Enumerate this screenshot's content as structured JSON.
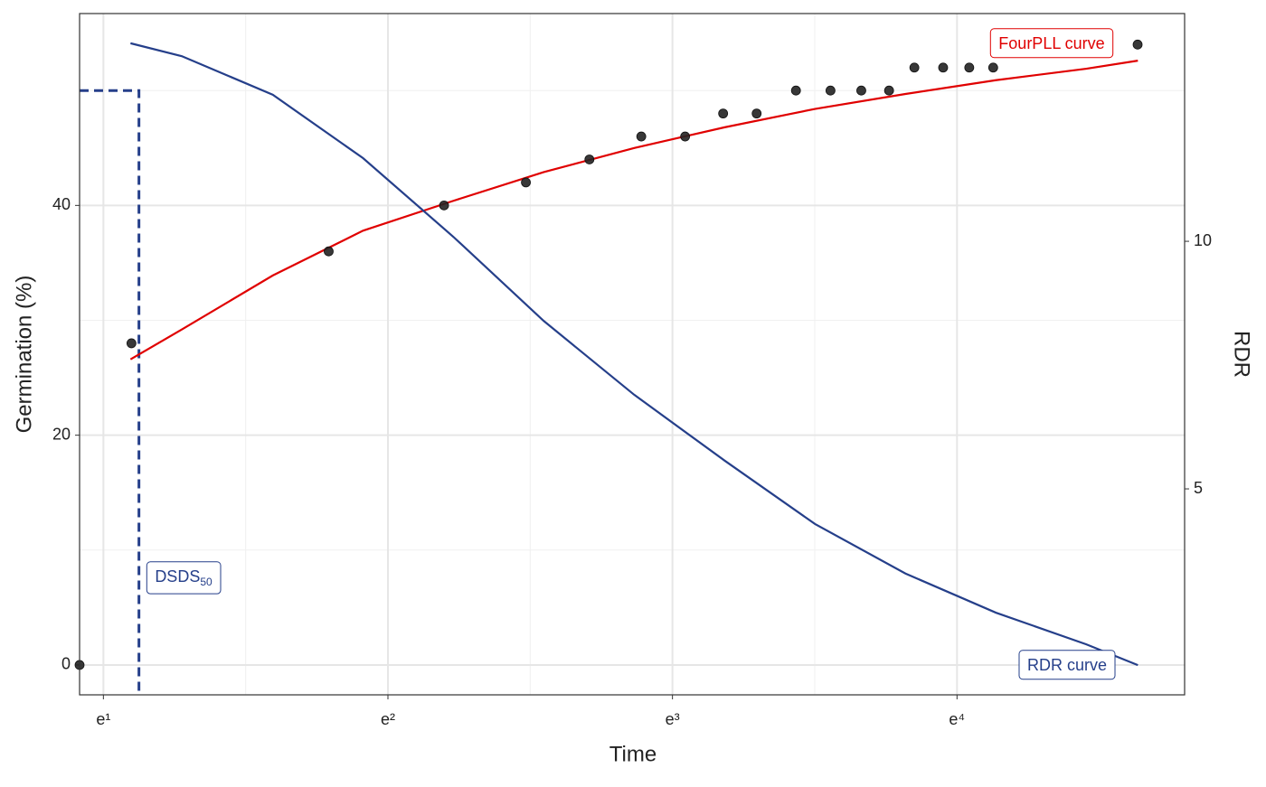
{
  "chart_data": {
    "type": "scatter",
    "x_label": "Time",
    "y_label": "Germination (%)",
    "y2_label": "RDR",
    "x_scale": "log",
    "xlim": [
      2.5,
      121.5
    ],
    "xticks": [
      {
        "value": 2.718282,
        "label": "e¹"
      },
      {
        "value": 7.389056,
        "label": "e²"
      },
      {
        "value": 20.085537,
        "label": "e³"
      },
      {
        "value": 54.59815,
        "label": "e⁴"
      }
    ],
    "xminor": [
      4.481689,
      12.182494,
      33.11545
    ],
    "ylim": [
      -2.6,
      56.7
    ],
    "yticks": [
      0,
      20,
      40
    ],
    "yminor": [
      10,
      30,
      50
    ],
    "y2lim": [
      0.84,
      14.6
    ],
    "y2ticks": [
      5,
      10
    ],
    "grid": true,
    "points": {
      "color": "#222222",
      "x": [
        2.5,
        3,
        6,
        9,
        12,
        15,
        18,
        21,
        24,
        27,
        31,
        35,
        39,
        43,
        47,
        52,
        57,
        62,
        103
      ],
      "values": [
        0,
        28,
        36,
        40,
        42,
        44,
        46,
        46,
        48,
        48,
        50,
        50,
        50,
        50,
        52,
        52,
        52,
        52,
        54
      ]
    },
    "curves": [
      {
        "name": "FourPLL curve",
        "color": "#e00000",
        "axis": "y",
        "x": [
          2.99,
          3.58,
          4.93,
          6.77,
          9.3,
          12.78,
          17.56,
          24.13,
          33.15,
          45.55,
          62.59,
          86.01,
          103.1
        ],
        "values": [
          26.6,
          29.2,
          33.9,
          37.8,
          40.4,
          42.9,
          45.0,
          46.8,
          48.4,
          49.7,
          50.9,
          51.9,
          52.6
        ]
      },
      {
        "name": "RDR curve",
        "color": "#253f8a",
        "axis": "y2",
        "x": [
          2.99,
          3.58,
          4.93,
          6.77,
          9.3,
          12.78,
          17.56,
          24.13,
          33.15,
          45.55,
          62.59,
          86.01,
          103.1
        ],
        "values": [
          14.0,
          13.74,
          12.96,
          11.68,
          10.09,
          8.39,
          6.9,
          5.57,
          4.29,
          3.29,
          2.5,
          1.86,
          1.44
        ]
      }
    ],
    "dsds": {
      "text": "DSDS",
      "subscript": "50",
      "color": "#253f8a",
      "x": 3.08,
      "y": 50
    }
  }
}
